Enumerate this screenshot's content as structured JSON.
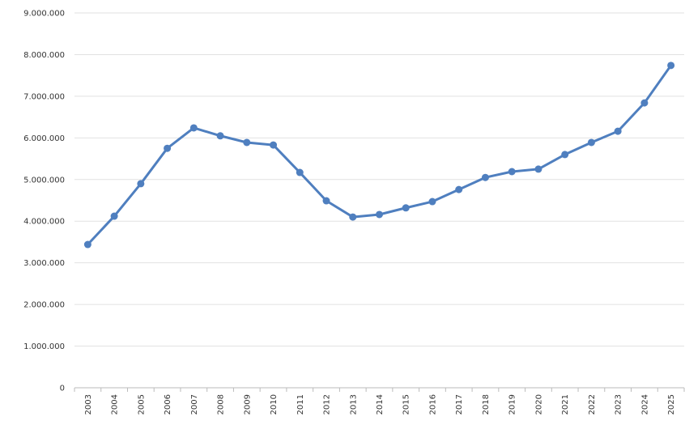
{
  "chart_data": {
    "type": "line",
    "categories": [
      "2003",
      "2004",
      "2005",
      "2006",
      "2007",
      "2008",
      "2009",
      "2010",
      "2011",
      "2012",
      "2013",
      "2014",
      "2015",
      "2016",
      "2017",
      "2018",
      "2019",
      "2020",
      "2021",
      "2022",
      "2023",
      "2024",
      "2025"
    ],
    "series": [
      {
        "color": "#4f7fbf",
        "values": [
          3440000,
          4120000,
          4900000,
          5750000,
          6240000,
          6050000,
          5890000,
          5830000,
          5170000,
          4490000,
          4100000,
          4160000,
          4320000,
          4470000,
          4760000,
          5050000,
          5190000,
          5250000,
          5600000,
          5890000,
          6160000,
          6840000,
          7740000
        ]
      }
    ],
    "ylim": [
      0,
      9000000
    ],
    "yticks": [
      {
        "value": 0,
        "label": "0"
      },
      {
        "value": 1000000,
        "label": "1.000.000"
      },
      {
        "value": 2000000,
        "label": "2.000.000"
      },
      {
        "value": 3000000,
        "label": "3.000.000"
      },
      {
        "value": 4000000,
        "label": "4.000.000"
      },
      {
        "value": 5000000,
        "label": "5.000.000"
      },
      {
        "value": 6000000,
        "label": "6.000.000"
      },
      {
        "value": 7000000,
        "label": "7.000.000"
      },
      {
        "value": 8000000,
        "label": "8.000.000"
      },
      {
        "value": 9000000,
        "label": "9.000.000"
      }
    ],
    "grid": true
  }
}
